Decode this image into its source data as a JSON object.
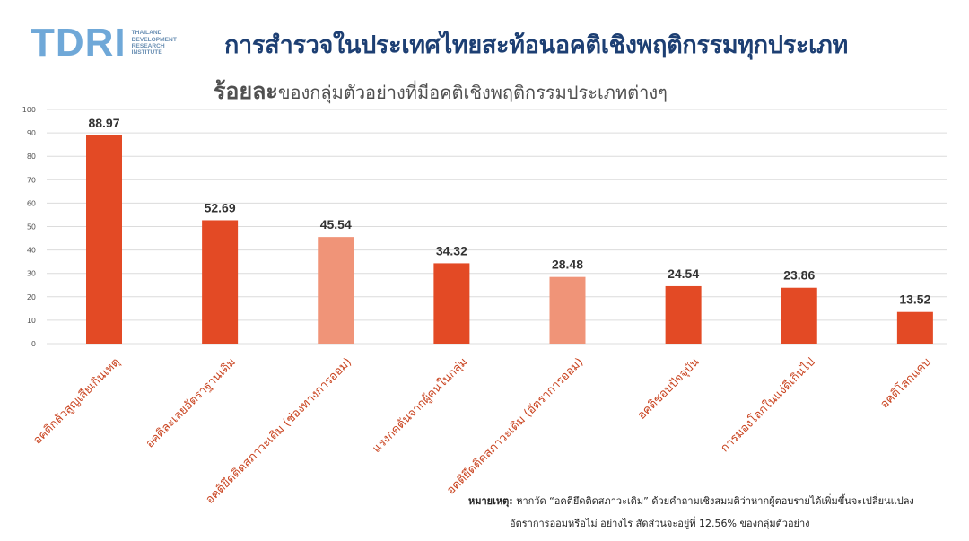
{
  "logo": {
    "mark": "TDRI",
    "lines": [
      "THAILAND",
      "DEVELOPMENT",
      "RESEARCH",
      "INSTITUTE"
    ]
  },
  "title": "การสำรวจในประเทศไทยสะท้อนอคติเชิงพฤติกรรมทุกประเภท",
  "subtitle": {
    "emphasis": "ร้อยละ",
    "rest": "ของกลุ่มตัวอย่างที่มีอคติเชิงพฤติกรรมประเภทต่างๆ"
  },
  "chart_data": {
    "type": "bar",
    "categories": [
      "อคติกลัวสูญเสียเกินเหตุ",
      "อคติละเลยอัตราฐานเดิม",
      "อคติยึดติดสภาวะเดิม (ช่องทางการออม)",
      "แรงกดดันจากผู้คนในกลุ่ม",
      "อคติยึดติดสภาวะเดิม (อัตราการออม)",
      "อคติชอบปัจจุบัน",
      "การมองโลกในแง่ดีเกินไป",
      "อคติโลกแคบ"
    ],
    "values": [
      88.97,
      52.69,
      45.54,
      34.32,
      28.48,
      24.54,
      23.86,
      13.52
    ],
    "value_labels": [
      "88.97",
      "52.69",
      "45.54",
      "34.32",
      "28.48",
      "24.54",
      "23.86",
      "13.52"
    ],
    "ylim": [
      0,
      100
    ],
    "yticks": [
      "0",
      "10",
      "20",
      "30",
      "40",
      "50",
      "60",
      "70",
      "80",
      "90",
      "100"
    ],
    "grid": true,
    "colors": {
      "primary": "#e34a25",
      "highlight": "#f09478",
      "grid": "#dcdcdc",
      "label": "#333333"
    },
    "highlighted_indices": [
      2,
      4
    ]
  },
  "note": {
    "label": "หมายเหตุ:",
    "line1": "หากวัด “อคติยึดติดสภาวะเดิม” ด้วยคำถามเชิงสมมติว่าหากผู้ตอบรายได้เพิ่มขึ้นจะเปลี่ยนแปลง",
    "line2": "อัตราการออมหรือไม่ อย่างไร สัดส่วนจะอยู่ที่ 12.56% ของกลุ่มตัวอย่าง"
  }
}
